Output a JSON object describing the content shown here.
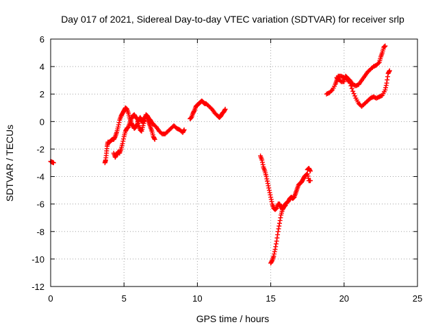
{
  "chart_data": {
    "type": "scatter",
    "title": "Day 017 of 2021, Sidereal Day-to-day VTEC variation (SDTVAR) for receiver srlp",
    "xlabel": "GPS time / hours",
    "ylabel": "SDTVAR / TECUs",
    "xlim": [
      0,
      25
    ],
    "ylim": [
      -12,
      6
    ],
    "x_ticks": [
      "0",
      "5",
      "10",
      "15",
      "20",
      "25"
    ],
    "y_ticks": [
      "6",
      "4",
      "2",
      "0",
      "-2",
      "-4",
      "-6",
      "-8",
      "-10",
      "-12"
    ],
    "grid": true,
    "marker": "+",
    "color": "#ff0000",
    "series": [
      {
        "segments": [
          [
            [
              0.0,
              -2.9
            ],
            [
              0.1,
              -2.95
            ],
            [
              0.2,
              -3.0
            ]
          ],
          [
            [
              3.7,
              -3.0
            ],
            [
              3.75,
              -2.8
            ],
            [
              3.8,
              -2.3
            ],
            [
              3.85,
              -1.8
            ],
            [
              3.9,
              -1.5
            ],
            [
              4.0,
              -1.5
            ],
            [
              4.1,
              -1.4
            ],
            [
              4.2,
              -1.3
            ],
            [
              4.3,
              -1.3
            ],
            [
              4.4,
              -1.1
            ],
            [
              4.5,
              -0.8
            ],
            [
              4.6,
              -0.4
            ],
            [
              4.7,
              0.1
            ],
            [
              4.8,
              0.4
            ],
            [
              4.9,
              0.6
            ],
            [
              5.0,
              0.8
            ],
            [
              5.1,
              1.0
            ],
            [
              5.2,
              0.9
            ],
            [
              5.3,
              0.6
            ],
            [
              5.4,
              0.2
            ],
            [
              5.5,
              -0.1
            ],
            [
              5.6,
              -0.3
            ],
            [
              5.7,
              -0.5
            ],
            [
              5.8,
              -0.4
            ],
            [
              5.9,
              -0.2
            ],
            [
              6.0,
              0.1
            ],
            [
              6.1,
              0.3
            ],
            [
              6.2,
              0.1
            ],
            [
              6.3,
              -0.1
            ],
            [
              6.4,
              0.2
            ],
            [
              6.5,
              0.4
            ],
            [
              6.6,
              0.2
            ],
            [
              6.7,
              -0.1
            ],
            [
              6.8,
              -0.4
            ],
            [
              6.9,
              -0.7
            ],
            [
              7.0,
              -1.1
            ],
            [
              7.1,
              -1.3
            ]
          ],
          [
            [
              4.3,
              -2.3
            ],
            [
              4.4,
              -2.6
            ],
            [
              4.5,
              -2.4
            ],
            [
              4.6,
              -2.2
            ],
            [
              4.7,
              -2.3
            ],
            [
              4.8,
              -2.0
            ],
            [
              4.9,
              -1.6
            ],
            [
              5.0,
              -1.1
            ],
            [
              5.1,
              -0.7
            ],
            [
              5.2,
              -0.5
            ],
            [
              5.3,
              -0.4
            ],
            [
              5.4,
              -0.1
            ],
            [
              5.5,
              0.2
            ],
            [
              5.6,
              0.4
            ],
            [
              5.7,
              0.5
            ],
            [
              5.8,
              0.3
            ],
            [
              5.9,
              0.2
            ],
            [
              6.0,
              -0.3
            ],
            [
              6.1,
              -0.6
            ],
            [
              6.2,
              -0.7
            ],
            [
              6.3,
              -0.3
            ],
            [
              6.4,
              0.2
            ],
            [
              6.5,
              0.5
            ],
            [
              6.6,
              0.4
            ],
            [
              6.7,
              0.2
            ],
            [
              6.8,
              0.1
            ],
            [
              6.9,
              -0.1
            ],
            [
              7.0,
              -0.2
            ],
            [
              7.2,
              -0.4
            ],
            [
              7.4,
              -0.7
            ],
            [
              7.6,
              -0.9
            ],
            [
              7.8,
              -0.9
            ],
            [
              8.0,
              -0.7
            ],
            [
              8.2,
              -0.5
            ],
            [
              8.4,
              -0.3
            ],
            [
              8.6,
              -0.5
            ],
            [
              8.8,
              -0.6
            ],
            [
              9.0,
              -0.8
            ],
            [
              9.1,
              -0.6
            ]
          ],
          [
            [
              9.5,
              0.2
            ],
            [
              9.6,
              0.3
            ],
            [
              9.7,
              0.6
            ],
            [
              9.8,
              0.8
            ],
            [
              9.9,
              1.1
            ],
            [
              10.0,
              1.2
            ],
            [
              10.1,
              1.3
            ],
            [
              10.2,
              1.4
            ],
            [
              10.3,
              1.5
            ],
            [
              10.4,
              1.4
            ],
            [
              10.5,
              1.3
            ],
            [
              10.6,
              1.3
            ],
            [
              10.8,
              1.1
            ],
            [
              11.0,
              0.9
            ],
            [
              11.2,
              0.6
            ],
            [
              11.4,
              0.4
            ],
            [
              11.5,
              0.3
            ],
            [
              11.6,
              0.4
            ],
            [
              11.7,
              0.6
            ],
            [
              11.8,
              0.7
            ],
            [
              11.9,
              0.9
            ]
          ],
          [
            [
              14.3,
              -2.5
            ],
            [
              14.4,
              -2.8
            ],
            [
              14.5,
              -3.3
            ],
            [
              14.6,
              -3.6
            ],
            [
              14.7,
              -4.0
            ],
            [
              14.8,
              -4.5
            ],
            [
              14.9,
              -5.0
            ],
            [
              15.0,
              -5.5
            ],
            [
              15.1,
              -6.0
            ],
            [
              15.2,
              -6.3
            ],
            [
              15.3,
              -6.4
            ],
            [
              15.4,
              -6.3
            ],
            [
              15.5,
              -6.0
            ],
            [
              15.6,
              -6.0
            ],
            [
              15.7,
              -6.2
            ],
            [
              15.8,
              -6.4
            ],
            [
              15.9,
              -6.2
            ],
            [
              16.0,
              -6.0
            ],
            [
              16.1,
              -5.9
            ],
            [
              16.2,
              -5.8
            ],
            [
              16.3,
              -5.6
            ],
            [
              16.4,
              -5.5
            ],
            [
              16.5,
              -5.6
            ],
            [
              16.6,
              -5.5
            ],
            [
              16.7,
              -5.2
            ],
            [
              16.8,
              -4.9
            ],
            [
              16.9,
              -4.6
            ],
            [
              17.0,
              -4.5
            ],
            [
              17.1,
              -4.4
            ],
            [
              17.2,
              -4.2
            ],
            [
              17.3,
              -4.0
            ],
            [
              17.4,
              -3.9
            ],
            [
              17.5,
              -3.8
            ],
            [
              17.6,
              -4.3
            ],
            [
              17.7,
              -4.3
            ]
          ],
          [
            [
              15.0,
              -10.3
            ],
            [
              15.1,
              -10.1
            ],
            [
              15.2,
              -9.8
            ],
            [
              15.3,
              -9.3
            ],
            [
              15.4,
              -8.7
            ],
            [
              15.5,
              -8.0
            ],
            [
              15.6,
              -7.4
            ],
            [
              15.7,
              -6.8
            ],
            [
              15.8,
              -6.4
            ],
            [
              15.9,
              -6.2
            ],
            [
              16.0,
              -6.1
            ]
          ],
          [
            [
              17.5,
              -3.5
            ],
            [
              17.6,
              -3.4
            ],
            [
              17.7,
              -3.6
            ]
          ],
          [
            [
              18.8,
              2.0
            ],
            [
              19.0,
              2.1
            ],
            [
              19.2,
              2.3
            ],
            [
              19.4,
              2.7
            ],
            [
              19.5,
              3.0
            ],
            [
              19.6,
              3.3
            ],
            [
              19.8,
              3.3
            ],
            [
              20.0,
              3.2
            ],
            [
              20.2,
              3.1
            ],
            [
              20.4,
              2.8
            ],
            [
              20.6,
              2.2
            ],
            [
              20.8,
              1.7
            ],
            [
              21.0,
              1.3
            ],
            [
              21.2,
              1.1
            ],
            [
              21.4,
              1.3
            ],
            [
              21.6,
              1.5
            ],
            [
              21.8,
              1.7
            ],
            [
              22.0,
              1.8
            ],
            [
              22.2,
              1.7
            ],
            [
              22.4,
              1.8
            ],
            [
              22.6,
              1.9
            ],
            [
              22.8,
              2.3
            ],
            [
              22.9,
              2.8
            ],
            [
              23.0,
              3.5
            ],
            [
              23.1,
              3.7
            ]
          ],
          [
            [
              19.5,
              3.2
            ],
            [
              19.6,
              3.1
            ],
            [
              19.8,
              2.9
            ],
            [
              20.0,
              2.9
            ],
            [
              20.1,
              3.3
            ],
            [
              20.2,
              3.2
            ],
            [
              20.4,
              3.0
            ],
            [
              20.6,
              2.7
            ],
            [
              20.8,
              2.6
            ],
            [
              21.0,
              2.7
            ],
            [
              21.2,
              3.0
            ],
            [
              21.4,
              3.3
            ],
            [
              21.6,
              3.6
            ],
            [
              21.8,
              3.8
            ],
            [
              22.0,
              4.0
            ],
            [
              22.2,
              4.1
            ],
            [
              22.4,
              4.3
            ],
            [
              22.5,
              4.7
            ],
            [
              22.6,
              5.0
            ],
            [
              22.7,
              5.4
            ],
            [
              22.8,
              5.5
            ]
          ]
        ]
      }
    ]
  }
}
